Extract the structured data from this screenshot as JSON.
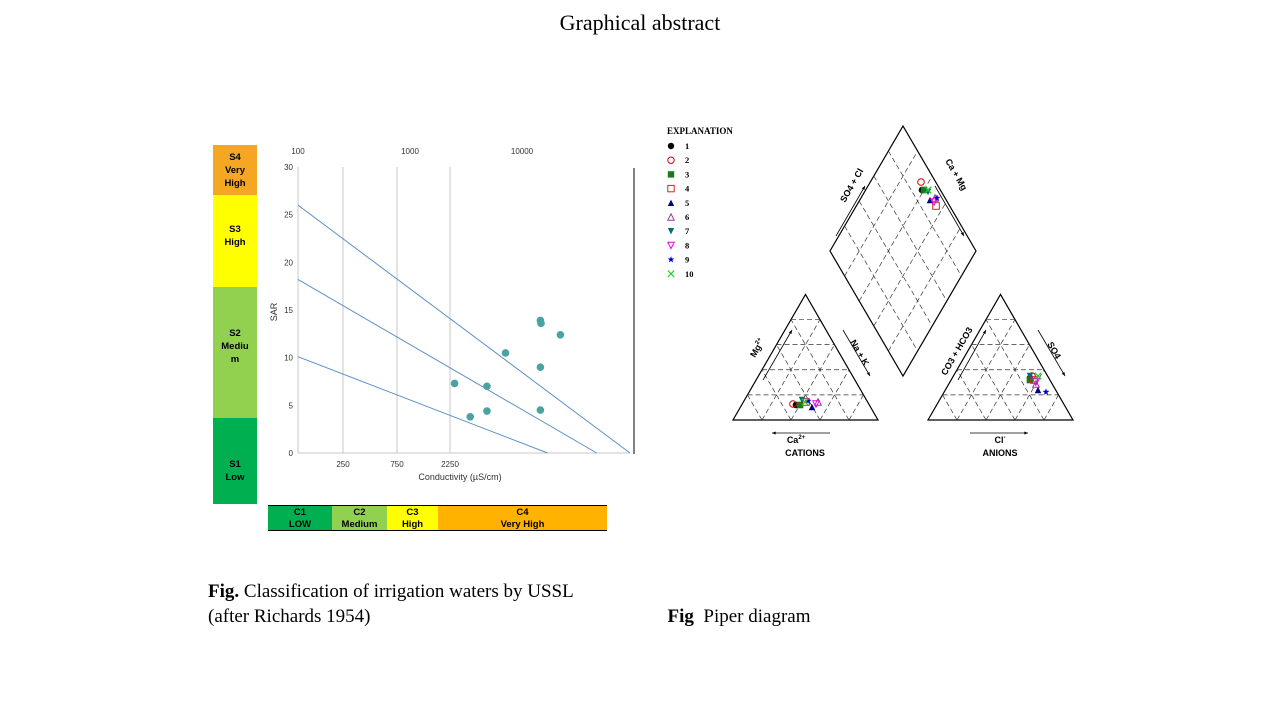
{
  "page": {
    "title": "Graphical abstract"
  },
  "colors": {
    "s4": "#f5a623",
    "s3": "#ffff00",
    "s2": "#92d050",
    "s1": "#00b050",
    "c1": "#00b050",
    "c2": "#92d050",
    "c3": "#ffff00",
    "c4": "#ffb300",
    "points": "#4aa3a0",
    "lines": "#5b8fc9"
  },
  "sodium_hazard": [
    {
      "code": "S4",
      "label": "Very High"
    },
    {
      "code": "S3",
      "label": "High"
    },
    {
      "code": "S2",
      "label": "Medium"
    },
    {
      "code": "S1",
      "label": "Low"
    }
  ],
  "salinity_hazard": [
    {
      "code": "C1",
      "label": "LOW"
    },
    {
      "code": "C2",
      "label": "Medium"
    },
    {
      "code": "C3",
      "label": "High"
    },
    {
      "code": "C4",
      "label": "Very High"
    }
  ],
  "chart_data": [
    {
      "type": "scatter",
      "title": "",
      "xlabel": "Conductivity (µS/cm)",
      "ylabel": "SAR",
      "ylim": [
        0,
        30
      ],
      "y_ticks": [
        0,
        5,
        10,
        15,
        20,
        25,
        30
      ],
      "x_bottom_ticks": [
        "250",
        "750",
        "2250"
      ],
      "x_top_ticks": [
        "100",
        "1000",
        "10000"
      ],
      "grid": "vertical lines at class boundaries",
      "boundary_lines": [
        {
          "from": [
            100,
            26.0
          ],
          "to": [
            100000,
            0
          ]
        },
        {
          "from": [
            100,
            18.2
          ],
          "to": [
            50000,
            0
          ]
        },
        {
          "from": [
            100,
            10.1
          ],
          "to": [
            18000,
            0
          ]
        }
      ],
      "series": [
        {
          "points": [
            {
              "x": 2600,
              "y": 7.3
            },
            {
              "x": 3600,
              "y": 3.8
            },
            {
              "x": 5100,
              "y": 7.0
            },
            {
              "x": 5100,
              "y": 4.4
            },
            {
              "x": 7500,
              "y": 10.5
            },
            {
              "x": 15500,
              "y": 13.9
            },
            {
              "x": 15700,
              "y": 13.6
            },
            {
              "x": 15500,
              "y": 9.0
            },
            {
              "x": 15500,
              "y": 4.5
            },
            {
              "x": 23500,
              "y": 12.4
            }
          ]
        }
      ]
    },
    {
      "type": "piper",
      "legend_title": "EXPLANATION",
      "legend": [
        {
          "label": "1",
          "marker": "circle-filled",
          "color": "#000000"
        },
        {
          "label": "2",
          "marker": "circle-open",
          "color": "#cc0000"
        },
        {
          "label": "3",
          "marker": "square-filled",
          "color": "#1a7a1a"
        },
        {
          "label": "4",
          "marker": "square-open",
          "color": "#dd2222"
        },
        {
          "label": "5",
          "marker": "triangle-filled",
          "color": "#000080"
        },
        {
          "label": "6",
          "marker": "triangle-open",
          "color": "#993399"
        },
        {
          "label": "7",
          "marker": "triangle-down-filled",
          "color": "#007070"
        },
        {
          "label": "8",
          "marker": "triangle-down-open",
          "color": "#ee00ee"
        },
        {
          "label": "9",
          "marker": "star",
          "color": "#0000cc"
        },
        {
          "label": "10",
          "marker": "x",
          "color": "#22cc22"
        }
      ],
      "labels": {
        "cations": "CATIONS",
        "anions": "ANIONS",
        "ca": "Ca",
        "ca_sup": "2+",
        "cl": "Cl",
        "cl_sup": "-",
        "mg": "Mg",
        "mg_sup": "2+",
        "nak": "Na + K",
        "so4_cl": "SO4 + Cl",
        "ca_mg": "Ca + Mg",
        "co3_hco3": "CO3 + HCO3",
        "so4": "SO4"
      }
    }
  ],
  "captions": {
    "left_bold": "Fig.",
    "left_text": " Classification of irrigation waters by USSL",
    "left_text2": "(after Richards 1954)",
    "right_bold": "Fig",
    "right_text": "  Piper diagram"
  }
}
